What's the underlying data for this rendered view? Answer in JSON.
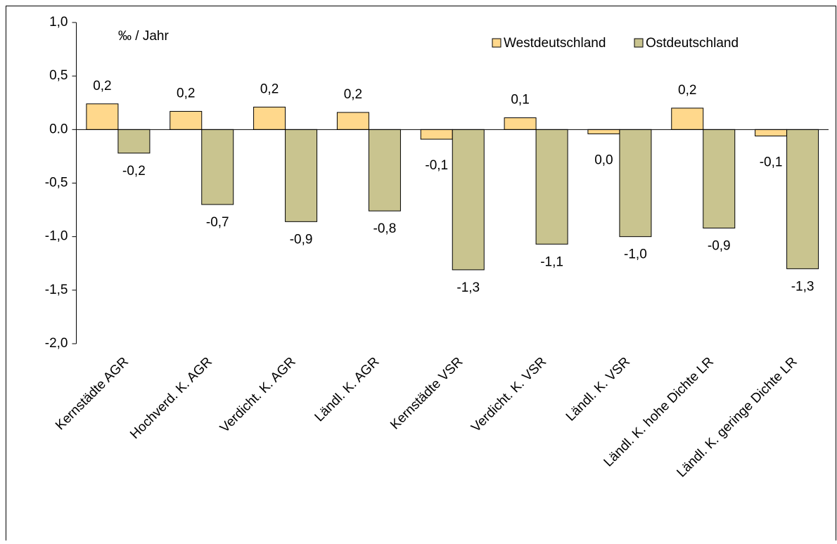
{
  "chart_data": {
    "type": "bar",
    "annotation": "‰ / Jahr",
    "categories": [
      "Kernstädte AGR",
      "Hochverd. K. AGR",
      "Verdicht. K. AGR",
      "Ländl. K. AGR",
      "Kernstädte VSR",
      "Verdicht. K. VSR",
      "Ländl. K. VSR",
      "Ländl. K. hohe Dichte LR",
      "Ländl. K. geringe Dichte LR"
    ],
    "series": [
      {
        "name": "Westdeutschland",
        "color": "#ffd88c",
        "values": [
          0.24,
          0.17,
          0.21,
          0.16,
          -0.09,
          0.11,
          -0.04,
          0.2,
          -0.06
        ],
        "value_labels": [
          "0,2",
          "0,2",
          "0,2",
          "0,2",
          "-0,1",
          "0,1",
          "0,0",
          "0,2",
          "-0,1"
        ]
      },
      {
        "name": "Ostdeutschland",
        "color": "#c9c48f",
        "values": [
          -0.22,
          -0.7,
          -0.86,
          -0.76,
          -1.31,
          -1.07,
          -1.0,
          -0.92,
          -1.3
        ],
        "value_labels": [
          "-0,2",
          "-0,7",
          "-0,9",
          "-0,8",
          "-1,3",
          "-1,1",
          "-1,0",
          "-0,9",
          "-1,3"
        ]
      }
    ],
    "ylim": [
      -2.0,
      1.0
    ],
    "yticks": [
      {
        "value": -2.0,
        "label": "-2,0"
      },
      {
        "value": -1.5,
        "label": "-1,5"
      },
      {
        "value": -1.0,
        "label": "-1,0"
      },
      {
        "value": -0.5,
        "label": "-0,5"
      },
      {
        "value": 0.0,
        "label": "0.0"
      },
      {
        "value": 0.5,
        "label": "0,5"
      },
      {
        "value": 1.0,
        "label": "1,0"
      }
    ],
    "legend": "top-right"
  }
}
